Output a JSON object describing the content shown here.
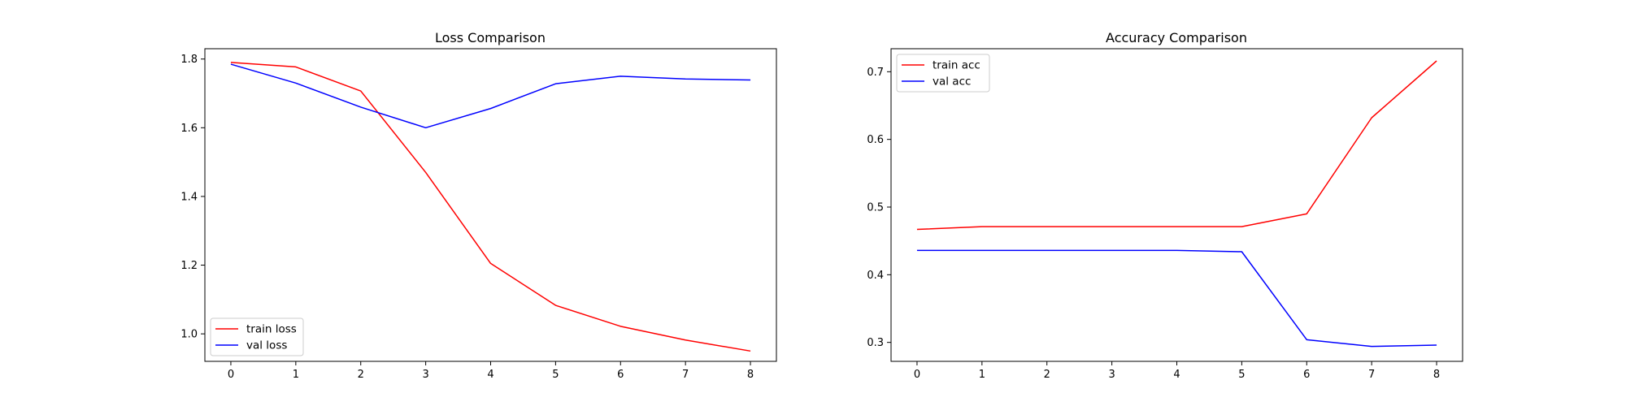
{
  "chart_data": [
    {
      "type": "line",
      "title": "Loss Comparison",
      "xlabel": "",
      "ylabel": "",
      "x": [
        0,
        1,
        2,
        3,
        4,
        5,
        6,
        7,
        8
      ],
      "xlim": [
        -0.4,
        8.4
      ],
      "ylim": [
        0.92,
        1.83
      ],
      "xticks": [
        0,
        1,
        2,
        3,
        4,
        5,
        6,
        7,
        8
      ],
      "yticks": [
        1.0,
        1.2,
        1.4,
        1.6,
        1.8
      ],
      "ytick_labels": [
        "1.0",
        "1.2",
        "1.4",
        "1.6",
        "1.8"
      ],
      "grid": false,
      "legend_position": "lower left",
      "series": [
        {
          "name": "train loss",
          "color": "#ff0000",
          "values": [
            1.79,
            1.777,
            1.707,
            1.47,
            1.205,
            1.083,
            1.022,
            0.982,
            0.95
          ]
        },
        {
          "name": "val loss",
          "color": "#0000ff",
          "values": [
            1.785,
            1.73,
            1.66,
            1.6,
            1.656,
            1.728,
            1.75,
            1.742,
            1.739
          ]
        }
      ]
    },
    {
      "type": "line",
      "title": "Accuracy Comparison",
      "xlabel": "",
      "ylabel": "",
      "x": [
        0,
        1,
        2,
        3,
        4,
        5,
        6,
        7,
        8
      ],
      "xlim": [
        -0.4,
        8.4
      ],
      "ylim": [
        0.272,
        0.734
      ],
      "xticks": [
        0,
        1,
        2,
        3,
        4,
        5,
        6,
        7,
        8
      ],
      "yticks": [
        0.3,
        0.4,
        0.5,
        0.6,
        0.7
      ],
      "ytick_labels": [
        "0.3",
        "0.4",
        "0.5",
        "0.6",
        "0.7"
      ],
      "grid": false,
      "legend_position": "upper left",
      "series": [
        {
          "name": "train acc",
          "color": "#ff0000",
          "values": [
            0.467,
            0.471,
            0.471,
            0.471,
            0.471,
            0.471,
            0.49,
            0.632,
            0.716
          ]
        },
        {
          "name": "val acc",
          "color": "#0000ff",
          "values": [
            0.436,
            0.436,
            0.436,
            0.436,
            0.436,
            0.434,
            0.304,
            0.294,
            0.296
          ]
        }
      ]
    }
  ]
}
